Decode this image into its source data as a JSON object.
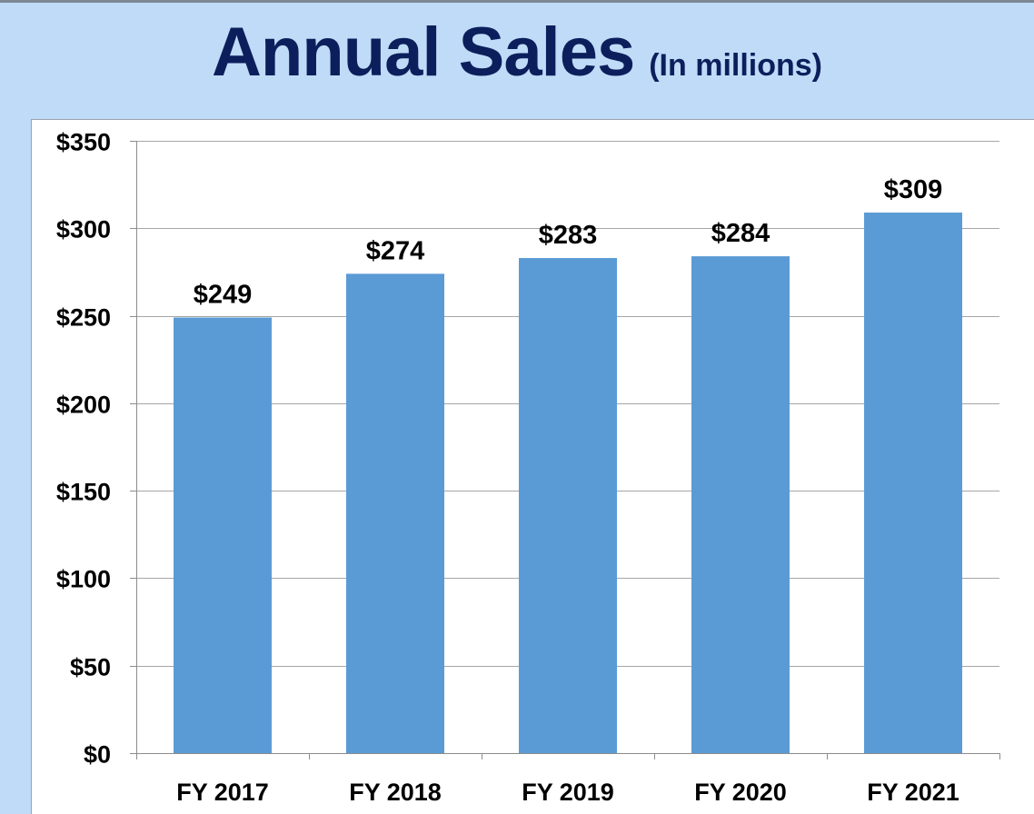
{
  "title": {
    "main": "Annual Sales",
    "sub": "(In millions)"
  },
  "colors": {
    "background": "#bfdbf7",
    "plot_background": "#ffffff",
    "bar": "#5b9bd5",
    "title": "#0c1f5c",
    "gridline": "#a6a6a6"
  },
  "chart_data": {
    "type": "bar",
    "title": "Annual Sales",
    "subtitle": "(In millions)",
    "categories": [
      "FY 2017",
      "FY 2018",
      "FY 2019",
      "FY 2020",
      "FY 2021"
    ],
    "values": [
      249,
      274,
      283,
      284,
      309
    ],
    "data_labels": [
      "$249",
      "$274",
      "$283",
      "$284",
      "$309"
    ],
    "y_ticks": [
      0,
      50,
      100,
      150,
      200,
      250,
      300,
      350
    ],
    "y_tick_labels": [
      "$0",
      "$50",
      "$100",
      "$150",
      "$200",
      "$250",
      "$300",
      "$350"
    ],
    "ylim": [
      0,
      350
    ],
    "xlabel": "",
    "ylabel": "",
    "grid": true,
    "legend": "none"
  }
}
